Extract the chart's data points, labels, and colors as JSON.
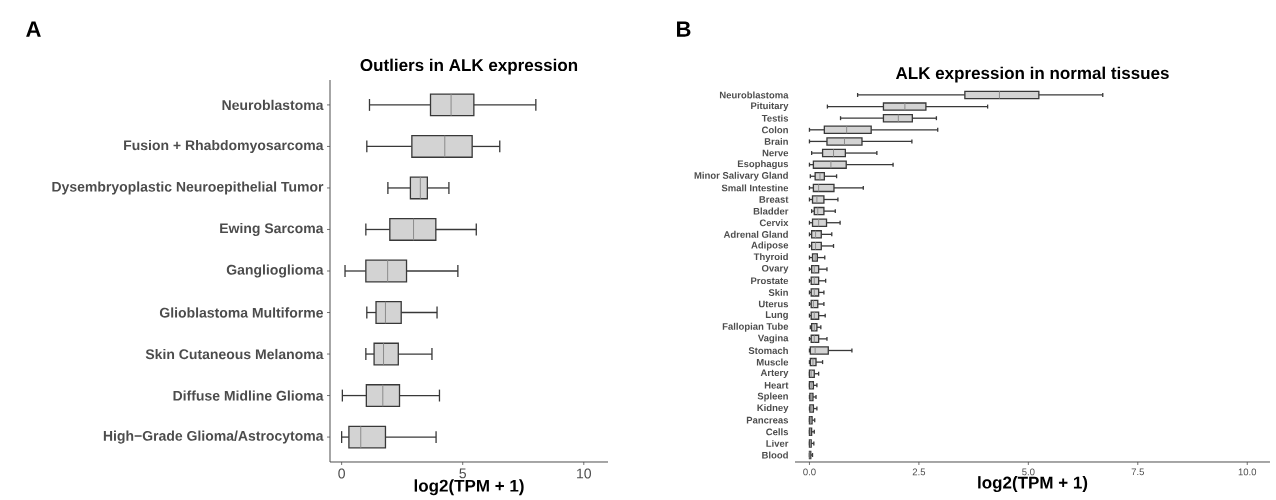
{
  "chart_data": [
    {
      "type": "box",
      "orientation": "horizontal",
      "title": "Outliers in ALK expression",
      "xlabel": "log2(TPM + 1)",
      "annotations": [
        "A"
      ],
      "categories": [
        "Neuroblastoma",
        "Fusion + Rhabdomyosarcoma",
        "Dysembryoplastic Neuroepithelial Tumor",
        "Ewing Sarcoma",
        "Ganglioglioma",
        "Glioblastoma Multiforme",
        "Skin Cutaneous Melanoma",
        "Diffuse Midline Glioma",
        "High−Grade Glioma/Astrocytoma"
      ],
      "xlim": [
        -0.48,
        11.0
      ],
      "xticks": [
        0,
        5,
        10
      ],
      "series": [
        {
          "color": "#d3d3d3",
          "boxes": [
            {
              "low": 1.15,
              "q1": 3.67,
              "median": 4.52,
              "q3": 5.46,
              "high": 8.02
            },
            {
              "low": 1.04,
              "q1": 2.9,
              "median": 4.26,
              "q3": 5.39,
              "high": 6.53
            },
            {
              "low": 1.91,
              "q1": 2.84,
              "median": 3.25,
              "q3": 3.54,
              "high": 4.43
            },
            {
              "low": 1.0,
              "q1": 1.99,
              "median": 2.97,
              "q3": 3.89,
              "high": 5.56
            },
            {
              "low": 0.14,
              "q1": 1.0,
              "median": 1.9,
              "q3": 2.68,
              "high": 4.8
            },
            {
              "low": 1.04,
              "q1": 1.42,
              "median": 1.81,
              "q3": 2.46,
              "high": 3.94
            },
            {
              "low": 1.0,
              "q1": 1.34,
              "median": 1.73,
              "q3": 2.34,
              "high": 3.73
            },
            {
              "low": 0.03,
              "q1": 1.02,
              "median": 1.7,
              "q3": 2.39,
              "high": 4.04
            },
            {
              "low": 0.0,
              "q1": 0.3,
              "median": 0.79,
              "q3": 1.81,
              "high": 3.9
            }
          ]
        }
      ]
    },
    {
      "type": "box",
      "orientation": "horizontal",
      "title": "ALK expression in normal tissues",
      "xlabel": "log2(TPM + 1)",
      "annotations": [
        "B"
      ],
      "categories": [
        "Neuroblastoma",
        "Pituitary",
        "Testis",
        "Colon",
        "Brain",
        "Nerve",
        "Esophagus",
        "Minor Salivary Gland",
        "Small Intestine",
        "Breast",
        "Bladder",
        "Cervix",
        "Adrenal Gland",
        "Adipose",
        "Thyroid",
        "Ovary",
        "Prostate",
        "Skin",
        "Uterus",
        "Lung",
        "Fallopian Tube",
        "Vagina",
        "Stomach",
        "Muscle",
        "Artery",
        "Heart",
        "Spleen",
        "Kidney",
        "Pancreas",
        "Cells",
        "Liver",
        "Blood"
      ],
      "xlim": [
        -0.33,
        10.52
      ],
      "xticks": [
        {
          "value": 0,
          "label": "0.0"
        },
        {
          "value": 2.5,
          "label": "2.5"
        },
        {
          "value": 5,
          "label": "5.0"
        },
        {
          "value": 7.5,
          "label": "7.5"
        },
        {
          "value": 10,
          "label": "10.0"
        }
      ],
      "series": [
        {
          "color": "#d3d3d3",
          "boxes": [
            {
              "low": 1.1,
              "q1": 3.55,
              "median": 4.34,
              "q3": 5.24,
              "high": 6.7
            },
            {
              "low": 0.41,
              "q1": 1.69,
              "median": 2.18,
              "q3": 2.66,
              "high": 4.07
            },
            {
              "low": 0.71,
              "q1": 1.69,
              "median": 2.03,
              "q3": 2.35,
              "high": 2.9
            },
            {
              "low": 0.0,
              "q1": 0.34,
              "median": 0.85,
              "q3": 1.41,
              "high": 2.93
            },
            {
              "low": 0.0,
              "q1": 0.4,
              "median": 0.8,
              "q3": 1.2,
              "high": 2.34
            },
            {
              "low": 0.05,
              "q1": 0.3,
              "median": 0.55,
              "q3": 0.82,
              "high": 1.54
            },
            {
              "low": 0.0,
              "q1": 0.09,
              "median": 0.49,
              "q3": 0.84,
              "high": 1.91
            },
            {
              "low": 0.02,
              "q1": 0.13,
              "median": 0.24,
              "q3": 0.34,
              "high": 0.62
            },
            {
              "low": 0.0,
              "q1": 0.09,
              "median": 0.21,
              "q3": 0.56,
              "high": 1.23
            },
            {
              "low": 0.0,
              "q1": 0.07,
              "median": 0.17,
              "q3": 0.33,
              "high": 0.65
            },
            {
              "low": 0.05,
              "q1": 0.11,
              "median": 0.19,
              "q3": 0.33,
              "high": 0.59
            },
            {
              "low": 0.0,
              "q1": 0.07,
              "median": 0.21,
              "q3": 0.39,
              "high": 0.7
            },
            {
              "low": 0.0,
              "q1": 0.05,
              "median": 0.14,
              "q3": 0.27,
              "high": 0.51
            },
            {
              "low": 0.0,
              "q1": 0.05,
              "median": 0.14,
              "q3": 0.27,
              "high": 0.55
            },
            {
              "low": 0.0,
              "q1": 0.07,
              "median": 0.13,
              "q3": 0.18,
              "high": 0.35
            },
            {
              "low": 0.0,
              "q1": 0.05,
              "median": 0.11,
              "q3": 0.21,
              "high": 0.4
            },
            {
              "low": 0.0,
              "q1": 0.04,
              "median": 0.11,
              "q3": 0.21,
              "high": 0.37
            },
            {
              "low": 0.0,
              "q1": 0.04,
              "median": 0.11,
              "q3": 0.21,
              "high": 0.33
            },
            {
              "low": 0.0,
              "q1": 0.04,
              "median": 0.09,
              "q3": 0.19,
              "high": 0.33
            },
            {
              "low": 0.0,
              "q1": 0.04,
              "median": 0.11,
              "q3": 0.21,
              "high": 0.36
            },
            {
              "low": 0.02,
              "q1": 0.05,
              "median": 0.11,
              "q3": 0.17,
              "high": 0.26
            },
            {
              "low": 0.0,
              "q1": 0.04,
              "median": 0.11,
              "q3": 0.21,
              "high": 0.4
            },
            {
              "low": 0.0,
              "q1": 0.02,
              "median": 0.13,
              "q3": 0.43,
              "high": 0.97
            },
            {
              "low": 0.0,
              "q1": 0.02,
              "median": 0.08,
              "q3": 0.15,
              "high": 0.3
            },
            {
              "low": 0.0,
              "q1": 0.0,
              "median": 0.04,
              "q3": 0.11,
              "high": 0.21
            },
            {
              "low": 0.0,
              "q1": 0.0,
              "median": 0.04,
              "q3": 0.09,
              "high": 0.17
            },
            {
              "low": 0.0,
              "q1": 0.01,
              "median": 0.04,
              "q3": 0.08,
              "high": 0.15
            },
            {
              "low": 0.0,
              "q1": 0.01,
              "median": 0.04,
              "q3": 0.09,
              "high": 0.17
            },
            {
              "low": 0.0,
              "q1": 0.0,
              "median": 0.02,
              "q3": 0.06,
              "high": 0.12
            },
            {
              "low": 0.0,
              "q1": 0.0,
              "median": 0.02,
              "q3": 0.05,
              "high": 0.11
            },
            {
              "low": 0.0,
              "q1": 0.0,
              "median": 0.02,
              "q3": 0.04,
              "high": 0.1
            },
            {
              "low": 0.0,
              "q1": 0.0,
              "median": 0.01,
              "q3": 0.03,
              "high": 0.07
            }
          ]
        }
      ]
    }
  ]
}
